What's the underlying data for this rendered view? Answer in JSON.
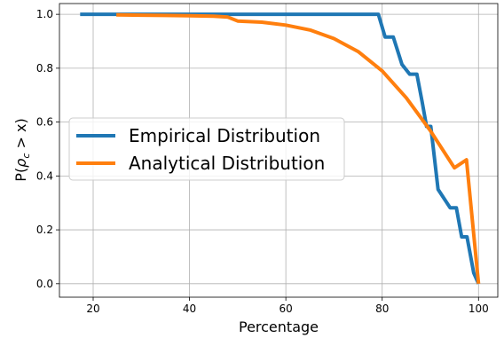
{
  "chart_data": {
    "type": "line",
    "title": "",
    "xlabel": "Percentage",
    "ylabel": "P(ρ_c > x)",
    "ylabel_parts": {
      "prefix": "P(",
      "rho": "ρ",
      "sub": "c",
      "suffix": " > x)"
    },
    "xlim": [
      13,
      104
    ],
    "ylim": [
      -0.05,
      1.04
    ],
    "xticks": [
      20,
      40,
      60,
      80,
      100
    ],
    "yticks": [
      0.0,
      0.2,
      0.4,
      0.6,
      0.8,
      1.0
    ],
    "xtick_labels": [
      "20",
      "40",
      "60",
      "80",
      "100"
    ],
    "ytick_labels": [
      "0.0",
      "0.2",
      "0.4",
      "0.6",
      "0.8",
      "1.0"
    ],
    "grid": true,
    "legend_position": "center-left",
    "series": [
      {
        "name": "Empirical Distribution",
        "color": "#1f77b4",
        "x": [
          17.3,
          79.2,
          79.2,
          80.6,
          80.6,
          82.3,
          82.3,
          84.1,
          84.1,
          85.7,
          85.7,
          87.2,
          87.2,
          88.3,
          88.3,
          89.2,
          89.2,
          90.1,
          90.1,
          91.6,
          91.6,
          94.1,
          94.1,
          95.4,
          95.4,
          96.5,
          96.5,
          97.6,
          97.6,
          99.0,
          99.0,
          100.0
        ],
        "y": [
          1.0,
          1.0,
          1.0,
          0.916,
          0.916,
          0.916,
          0.916,
          0.814,
          0.814,
          0.778,
          0.778,
          0.778,
          0.778,
          0.674,
          0.674,
          0.584,
          0.584,
          0.584,
          0.584,
          0.35,
          0.35,
          0.282,
          0.282,
          0.282,
          0.282,
          0.174,
          0.174,
          0.174,
          0.174,
          0.04,
          0.04,
          0.0
        ]
      },
      {
        "name": "Analytical Distribution",
        "color": "#ff7f0e",
        "x": [
          24.8,
          30,
          35,
          40,
          45,
          47.9,
          50,
          55,
          60,
          65,
          70,
          75,
          80,
          85,
          90,
          95,
          97.5,
          100.0
        ],
        "y": [
          0.998,
          0.997,
          0.996,
          0.995,
          0.993,
          0.99,
          0.975,
          0.971,
          0.96,
          0.942,
          0.91,
          0.862,
          0.79,
          0.69,
          0.568,
          0.43,
          0.46,
          0.0
        ]
      }
    ]
  }
}
